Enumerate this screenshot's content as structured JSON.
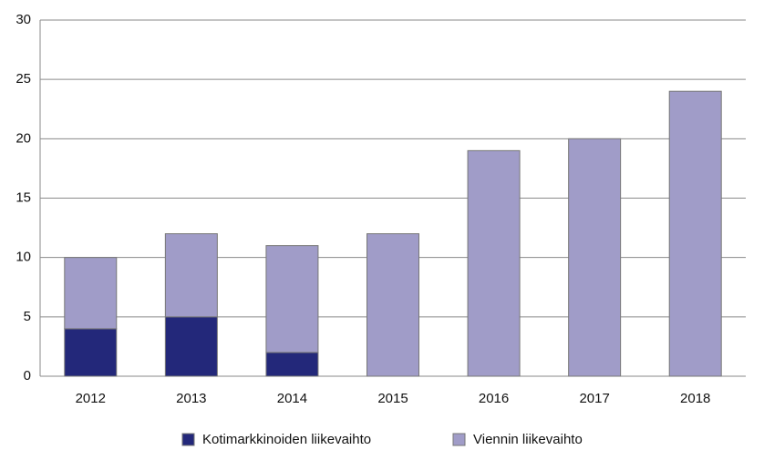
{
  "chart_data": {
    "type": "stacked_bar",
    "categories": [
      "2012",
      "2013",
      "2014",
      "2015",
      "2016",
      "2017",
      "2018"
    ],
    "series": [
      {
        "name": "Kotimarkkinoiden liikevaihto",
        "color": "#23287a",
        "values": [
          4,
          5,
          2,
          0,
          0,
          0,
          0
        ]
      },
      {
        "name": "Viennin liikevaihto",
        "color": "#a09cc8",
        "values": [
          6,
          7,
          9,
          12,
          19,
          20,
          24
        ]
      }
    ],
    "ylim": [
      0,
      30
    ],
    "yticks": [
      0,
      5,
      10,
      15,
      20,
      25,
      30
    ],
    "grid": true,
    "legend": "bottom"
  }
}
